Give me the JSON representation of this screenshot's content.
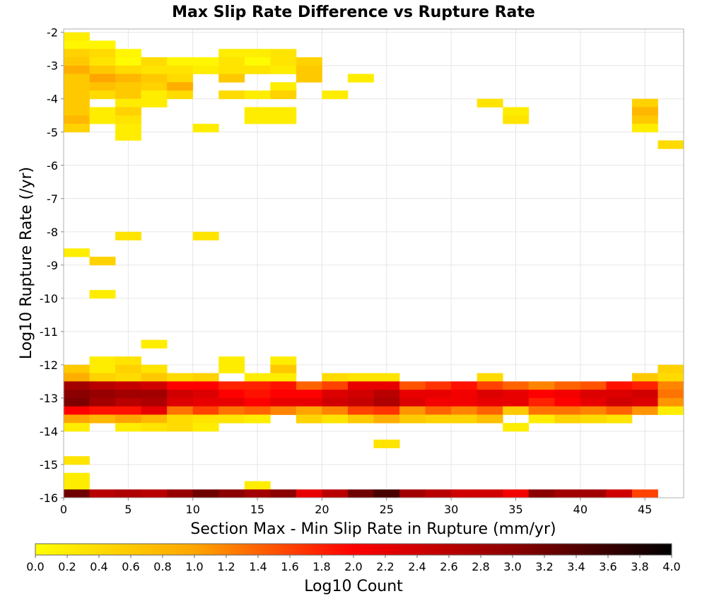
{
  "chart_data": {
    "type": "heatmap",
    "title": "Max Slip Rate Difference vs Rupture Rate",
    "xlabel": "Section Max - Min Slip Rate in Rupture (mm/yr)",
    "ylabel": "Log10 Rupture Rate (/yr)",
    "xlim": [
      0,
      48
    ],
    "ylim": [
      -16,
      -1.9
    ],
    "x_bin_width": 2,
    "y_bin_height": 0.25,
    "x_ticks": [
      0,
      5,
      10,
      15,
      20,
      25,
      30,
      35,
      40,
      45
    ],
    "x_tick_labels": [
      "0",
      "5",
      "10",
      "15",
      "20",
      "25",
      "30",
      "35",
      "40",
      "45"
    ],
    "y_ticks": [
      -2,
      -3,
      -4,
      -5,
      -6,
      -7,
      -8,
      -9,
      -10,
      -11,
      -12,
      -13,
      -14,
      -15,
      -16
    ],
    "y_tick_labels": [
      "-2",
      "-3",
      "-4",
      "-5",
      "-6",
      "-7",
      "-8",
      "-9",
      "-10",
      "-11",
      "-12",
      "-13",
      "-14",
      "-15",
      "-16"
    ],
    "grid": true,
    "colorbar": {
      "label": "Log10 Count",
      "range": [
        0,
        4
      ],
      "ticks": [
        0.0,
        0.2,
        0.4,
        0.6,
        0.8,
        1.0,
        1.2,
        1.4,
        1.6,
        1.8,
        2.0,
        2.2,
        2.4,
        2.6,
        2.8,
        3.0,
        3.2,
        3.4,
        3.6,
        3.8,
        4.0
      ],
      "tick_labels": [
        "0.0",
        "0.2",
        "0.4",
        "0.6",
        "0.8",
        "1.0",
        "1.2",
        "1.4",
        "1.6",
        "1.8",
        "2.0",
        "2.2",
        "2.4",
        "2.6",
        "2.8",
        "3.0",
        "3.2",
        "3.4",
        "3.6",
        "3.8",
        "4.0"
      ],
      "colors": [
        "#ffff00",
        "#ffa500",
        "#ff0000",
        "#8b0000",
        "#000000"
      ]
    },
    "rows": [
      {
        "y": -2.125,
        "cells": [
          [
            1,
            0.2
          ]
        ]
      },
      {
        "y": -2.375,
        "cells": [
          [
            1,
            0.1
          ],
          [
            3,
            0.1
          ]
        ]
      },
      {
        "y": -2.625,
        "cells": [
          [
            1,
            0.5
          ],
          [
            3,
            0.4
          ],
          [
            5,
            0.1
          ],
          [
            13,
            0.2
          ],
          [
            15,
            0.2
          ],
          [
            17,
            0.3
          ]
        ]
      },
      {
        "y": -2.875,
        "cells": [
          [
            1,
            0.6
          ],
          [
            3,
            0.3
          ],
          [
            5,
            0.05
          ],
          [
            7,
            0.4
          ],
          [
            9,
            0.1
          ],
          [
            11,
            0.1
          ],
          [
            13,
            0.3
          ],
          [
            15,
            0.05
          ],
          [
            17,
            0.3
          ],
          [
            19,
            0.5
          ]
        ]
      },
      {
        "y": -3.125,
        "cells": [
          [
            1,
            0.9
          ],
          [
            3,
            0.6
          ],
          [
            5,
            0.4
          ],
          [
            7,
            0.3
          ],
          [
            9,
            0.3
          ],
          [
            11,
            0.2
          ],
          [
            13,
            0.3
          ],
          [
            15,
            0.3
          ],
          [
            17,
            0.2
          ],
          [
            19,
            0.6
          ]
        ]
      },
      {
        "y": -3.375,
        "cells": [
          [
            1,
            0.6
          ],
          [
            3,
            1.0
          ],
          [
            5,
            0.8
          ],
          [
            7,
            0.6
          ],
          [
            9,
            0.4
          ],
          [
            13,
            0.6
          ],
          [
            19,
            0.6
          ],
          [
            23,
            0.2
          ]
        ]
      },
      {
        "y": -3.625,
        "cells": [
          [
            1,
            0.6
          ],
          [
            3,
            0.7
          ],
          [
            5,
            0.6
          ],
          [
            7,
            0.5
          ],
          [
            9,
            0.9
          ],
          [
            17,
            0.2
          ]
        ]
      },
      {
        "y": -3.875,
        "cells": [
          [
            1,
            0.6
          ],
          [
            3,
            0.4
          ],
          [
            5,
            0.6
          ],
          [
            7,
            0.2
          ],
          [
            9,
            0.4
          ],
          [
            13,
            0.4
          ],
          [
            15,
            0.2
          ],
          [
            17,
            0.5
          ],
          [
            21,
            0.2
          ]
        ]
      },
      {
        "y": -4.125,
        "cells": [
          [
            1,
            0.6
          ],
          [
            5,
            0.2
          ],
          [
            7,
            0.2
          ],
          [
            33,
            0.3
          ],
          [
            45,
            0.5
          ]
        ]
      },
      {
        "y": -4.375,
        "cells": [
          [
            1,
            0.6
          ],
          [
            3,
            0.2
          ],
          [
            5,
            0.5
          ],
          [
            15,
            0.2
          ],
          [
            17,
            0.2
          ],
          [
            35,
            0.2
          ],
          [
            45,
            0.8
          ]
        ]
      },
      {
        "y": -4.625,
        "cells": [
          [
            1,
            0.8
          ],
          [
            3,
            0.2
          ],
          [
            5,
            0.3
          ],
          [
            15,
            0.2
          ],
          [
            17,
            0.2
          ],
          [
            35,
            0.3
          ],
          [
            45,
            0.6
          ]
        ]
      },
      {
        "y": -4.875,
        "cells": [
          [
            1,
            0.5
          ],
          [
            5,
            0.2
          ],
          [
            11,
            0.2
          ],
          [
            45,
            0.2
          ]
        ]
      },
      {
        "y": -5.125,
        "cells": [
          [
            5,
            0.2
          ]
        ]
      },
      {
        "y": -5.375,
        "cells": [
          [
            47,
            0.4
          ]
        ]
      },
      {
        "y": -8.125,
        "cells": [
          [
            5,
            0.3
          ],
          [
            11,
            0.3
          ]
        ]
      },
      {
        "y": -8.625,
        "cells": [
          [
            1,
            0.2
          ]
        ]
      },
      {
        "y": -8.875,
        "cells": [
          [
            3,
            0.5
          ]
        ]
      },
      {
        "y": -9.875,
        "cells": [
          [
            3,
            0.2
          ]
        ]
      },
      {
        "y": -11.375,
        "cells": [
          [
            7,
            0.2
          ]
        ]
      },
      {
        "y": -11.875,
        "cells": [
          [
            3,
            0.2
          ],
          [
            5,
            0.3
          ],
          [
            13,
            0.2
          ],
          [
            17,
            0.2
          ]
        ]
      },
      {
        "y": -12.125,
        "cells": [
          [
            1,
            0.6
          ],
          [
            3,
            0.2
          ],
          [
            5,
            0.5
          ],
          [
            7,
            0.3
          ],
          [
            13,
            0.2
          ],
          [
            17,
            0.6
          ],
          [
            47,
            0.5
          ]
        ]
      },
      {
        "y": -12.375,
        "cells": [
          [
            1,
            0.9
          ],
          [
            3,
            0.5
          ],
          [
            5,
            0.4
          ],
          [
            7,
            0.6
          ],
          [
            9,
            0.4
          ],
          [
            11,
            0.5
          ],
          [
            15,
            0.2
          ],
          [
            17,
            0.2
          ],
          [
            21,
            0.4
          ],
          [
            23,
            0.3
          ],
          [
            25,
            0.3
          ],
          [
            33,
            0.4
          ],
          [
            45,
            0.6
          ],
          [
            47,
            0.4
          ]
        ]
      },
      {
        "y": -12.625,
        "cells": [
          [
            1,
            2.8
          ],
          [
            3,
            2.6
          ],
          [
            5,
            2.5
          ],
          [
            7,
            2.4
          ],
          [
            9,
            2.0
          ],
          [
            11,
            2.0
          ],
          [
            13,
            1.8
          ],
          [
            15,
            1.8
          ],
          [
            17,
            1.9
          ],
          [
            19,
            1.4
          ],
          [
            21,
            1.6
          ],
          [
            23,
            2.2
          ],
          [
            25,
            2.2
          ],
          [
            27,
            1.5
          ],
          [
            29,
            1.7
          ],
          [
            31,
            1.9
          ],
          [
            33,
            1.6
          ],
          [
            35,
            1.4
          ],
          [
            37,
            1.2
          ],
          [
            39,
            1.4
          ],
          [
            41,
            1.5
          ],
          [
            43,
            1.9
          ],
          [
            45,
            1.8
          ],
          [
            47,
            1.2
          ]
        ]
      },
      {
        "y": -12.875,
        "cells": [
          [
            1,
            3.0
          ],
          [
            3,
            2.9
          ],
          [
            5,
            2.8
          ],
          [
            7,
            2.8
          ],
          [
            9,
            2.4
          ],
          [
            11,
            2.3
          ],
          [
            13,
            2.0
          ],
          [
            15,
            1.9
          ],
          [
            17,
            2.0
          ],
          [
            19,
            2.0
          ],
          [
            21,
            2.3
          ],
          [
            23,
            2.4
          ],
          [
            25,
            2.6
          ],
          [
            27,
            2.2
          ],
          [
            29,
            2.2
          ],
          [
            31,
            2.1
          ],
          [
            33,
            2.3
          ],
          [
            35,
            2.2
          ],
          [
            37,
            2.0
          ],
          [
            39,
            2.1
          ],
          [
            41,
            2.3
          ],
          [
            43,
            2.3
          ],
          [
            45,
            2.4
          ],
          [
            47,
            1.3
          ]
        ]
      },
      {
        "y": -13.125,
        "cells": [
          [
            1,
            3.1
          ],
          [
            3,
            2.8
          ],
          [
            5,
            2.6
          ],
          [
            7,
            2.7
          ],
          [
            9,
            2.3
          ],
          [
            11,
            2.2
          ],
          [
            13,
            2.2
          ],
          [
            15,
            2.0
          ],
          [
            17,
            2.2
          ],
          [
            19,
            2.2
          ],
          [
            21,
            2.4
          ],
          [
            23,
            2.5
          ],
          [
            25,
            2.7
          ],
          [
            27,
            2.3
          ],
          [
            29,
            2.1
          ],
          [
            31,
            2.1
          ],
          [
            33,
            2.2
          ],
          [
            35,
            2.2
          ],
          [
            37,
            1.8
          ],
          [
            39,
            2.0
          ],
          [
            41,
            2.2
          ],
          [
            43,
            2.4
          ],
          [
            45,
            2.3
          ],
          [
            47,
            1.1
          ]
        ]
      },
      {
        "y": -13.375,
        "cells": [
          [
            1,
            2.0
          ],
          [
            3,
            1.9
          ],
          [
            5,
            1.9
          ],
          [
            7,
            2.2
          ],
          [
            9,
            1.3
          ],
          [
            11,
            1.6
          ],
          [
            13,
            1.3
          ],
          [
            15,
            1.4
          ],
          [
            17,
            1.2
          ],
          [
            19,
            1.0
          ],
          [
            21,
            1.2
          ],
          [
            23,
            1.6
          ],
          [
            25,
            1.7
          ],
          [
            27,
            1.1
          ],
          [
            29,
            1.4
          ],
          [
            31,
            1.2
          ],
          [
            33,
            1.4
          ],
          [
            35,
            0.6
          ],
          [
            37,
            1.3
          ],
          [
            39,
            1.3
          ],
          [
            41,
            1.2
          ],
          [
            43,
            1.4
          ],
          [
            45,
            1.1
          ],
          [
            47,
            0.2
          ]
        ]
      },
      {
        "y": -13.625,
        "cells": [
          [
            1,
            1.0
          ],
          [
            3,
            0.8
          ],
          [
            5,
            1.0
          ],
          [
            7,
            0.8
          ],
          [
            9,
            0.4
          ],
          [
            11,
            0.3
          ],
          [
            13,
            0.3
          ],
          [
            15,
            0.2
          ],
          [
            19,
            0.5
          ],
          [
            21,
            0.3
          ],
          [
            23,
            0.6
          ],
          [
            25,
            0.9
          ],
          [
            27,
            0.6
          ],
          [
            29,
            0.5
          ],
          [
            31,
            0.5
          ],
          [
            33,
            0.7
          ],
          [
            37,
            0.2
          ],
          [
            39,
            0.5
          ],
          [
            41,
            0.4
          ],
          [
            43,
            0.3
          ]
        ]
      },
      {
        "y": -13.875,
        "cells": [
          [
            1,
            0.2
          ],
          [
            5,
            0.2
          ],
          [
            7,
            0.3
          ],
          [
            9,
            0.4
          ],
          [
            11,
            0.2
          ],
          [
            35,
            0.2
          ]
        ]
      },
      {
        "y": -14.375,
        "cells": [
          [
            25,
            0.3
          ]
        ]
      },
      {
        "y": -14.875,
        "cells": [
          [
            1,
            0.3
          ]
        ]
      },
      {
        "y": -15.375,
        "cells": [
          [
            1,
            0.2
          ]
        ]
      },
      {
        "y": -15.625,
        "cells": [
          [
            1,
            0.2
          ],
          [
            15,
            0.2
          ]
        ]
      },
      {
        "y": -15.875,
        "cells": [
          [
            1,
            3.2
          ],
          [
            3,
            2.6
          ],
          [
            5,
            2.7
          ],
          [
            7,
            2.6
          ],
          [
            9,
            2.9
          ],
          [
            11,
            3.2
          ],
          [
            13,
            3.0
          ],
          [
            15,
            2.8
          ],
          [
            17,
            3.0
          ],
          [
            19,
            2.2
          ],
          [
            21,
            2.6
          ],
          [
            23,
            3.2
          ],
          [
            25,
            3.5
          ],
          [
            27,
            2.8
          ],
          [
            29,
            2.6
          ],
          [
            31,
            2.4
          ],
          [
            33,
            2.4
          ],
          [
            35,
            2.1
          ],
          [
            37,
            3.0
          ],
          [
            39,
            2.8
          ],
          [
            41,
            2.8
          ],
          [
            43,
            2.4
          ],
          [
            45,
            1.6
          ]
        ]
      }
    ]
  }
}
